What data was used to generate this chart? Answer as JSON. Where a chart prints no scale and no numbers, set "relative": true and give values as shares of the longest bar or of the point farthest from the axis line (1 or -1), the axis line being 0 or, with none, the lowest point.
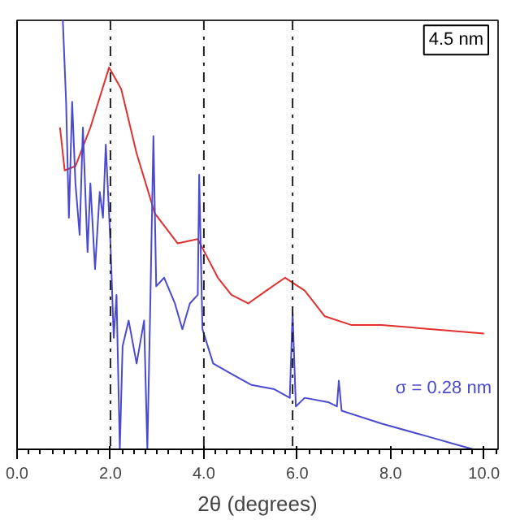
{
  "chart_data": {
    "type": "line",
    "relative": true,
    "xlabel": "2θ (degrees)",
    "xlim": [
      0,
      10.3
    ],
    "xticks": [
      {
        "value": 0,
        "label": "0.0"
      },
      {
        "value": 2,
        "label": "2.0"
      },
      {
        "value": 4,
        "label": "4.0"
      },
      {
        "value": 6,
        "label": "6.0"
      },
      {
        "value": 8,
        "label": "8.0"
      },
      {
        "value": 10,
        "label": "10.0"
      }
    ],
    "tick_labels": "x",
    "series": [
      {
        "color": "#e03030",
        "x": [
          0.92,
          1.02,
          1.25,
          1.57,
          1.97,
          2.23,
          2.56,
          2.95,
          3.44,
          3.87,
          4.3,
          4.59,
          4.95,
          5.34,
          5.74,
          6.16,
          6.59,
          7.15,
          7.8,
          8.89,
          10.0
        ],
        "values": [
          0.75,
          0.65,
          0.66,
          0.75,
          0.89,
          0.84,
          0.69,
          0.55,
          0.48,
          0.49,
          0.4,
          0.36,
          0.34,
          0.37,
          0.4,
          0.37,
          0.31,
          0.29,
          0.29,
          0.28,
          0.27
        ]
      },
      {
        "color": "#4a4ad0",
        "x": [
          0.98,
          1.05,
          1.11,
          1.18,
          1.25,
          1.34,
          1.41,
          1.51,
          1.57,
          1.67,
          1.77,
          1.84,
          1.9,
          2.0,
          2.07,
          2.13,
          2.2,
          2.26,
          2.39,
          2.56,
          2.72,
          2.79,
          2.85,
          2.92,
          2.98,
          3.15,
          3.38,
          3.54,
          3.7,
          3.87,
          3.9,
          3.97,
          4.2,
          4.52,
          5.02,
          5.51,
          5.84,
          5.9,
          5.97,
          6.16,
          6.66,
          6.85,
          6.89,
          6.95,
          7.8,
          8.79,
          9.44,
          9.77
        ],
        "values": [
          1.0,
          0.81,
          0.54,
          0.81,
          0.62,
          0.5,
          0.75,
          0.46,
          0.62,
          0.42,
          0.6,
          0.54,
          0.71,
          0.48,
          0.26,
          0.36,
          0,
          0.24,
          0.3,
          0.2,
          0.3,
          0,
          0.32,
          0.73,
          0.38,
          0.4,
          0.34,
          0.28,
          0.34,
          0.36,
          0.64,
          0.28,
          0.2,
          0.18,
          0.15,
          0.14,
          0.12,
          0.32,
          0.1,
          0.12,
          0.11,
          0.1,
          0.16,
          0.09,
          0.06,
          0.03,
          0.01,
          0
        ]
      }
    ],
    "ref_lines": [
      {
        "axis": "x",
        "value": 2.0,
        "color": "#222222",
        "line_style": "dashdot"
      },
      {
        "axis": "x",
        "value": 4.0,
        "color": "#222222",
        "line_style": "dashdot"
      },
      {
        "axis": "x",
        "value": 5.9,
        "color": "#222222",
        "line_style": "dashdot"
      }
    ],
    "annotations": [
      "4.5 nm",
      "σ = 0.28 nm"
    ]
  }
}
